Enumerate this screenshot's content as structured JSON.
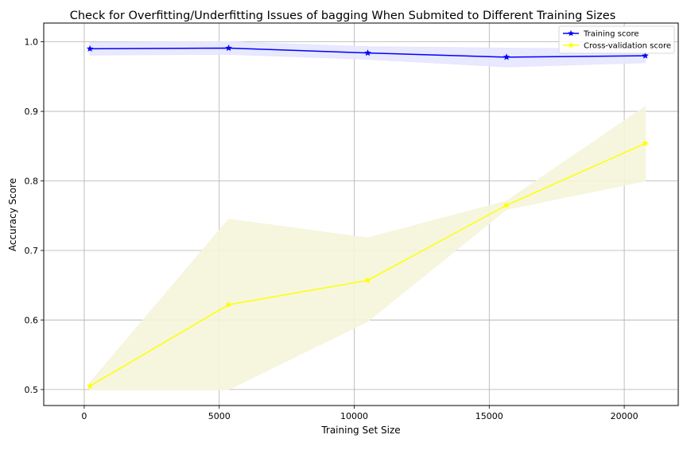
{
  "chart_data": {
    "type": "line",
    "title": "Check for Overfitting/Underfitting Issues of bagging When Submited to Different Training Sizes",
    "xlabel": "Training Set Size",
    "ylabel": "Accuracy Score",
    "xlim": [
      -1500,
      22000
    ],
    "ylim": [
      0.477,
      1.027
    ],
    "xticks": [
      0,
      5000,
      10000,
      15000,
      20000
    ],
    "yticks": [
      0.5,
      0.6,
      0.7,
      0.8,
      0.9,
      1.0
    ],
    "xtick_labels": [
      "0",
      "5000",
      "10000",
      "15000",
      "20000"
    ],
    "ytick_labels": [
      "0.5",
      "0.6",
      "0.7",
      "0.8",
      "0.9",
      "1.0"
    ],
    "grid": true,
    "legend_position": "upper right",
    "x": [
      210,
      5350,
      10500,
      15640,
      20780
    ],
    "series": [
      {
        "name": "Training score",
        "values": [
          0.99,
          0.991,
          0.984,
          0.978,
          0.98
        ],
        "band_upper": [
          0.999,
          1.0,
          0.993,
          0.991,
          0.989
        ],
        "band_lower": [
          0.981,
          0.982,
          0.975,
          0.964,
          0.97
        ],
        "color": "#0000ff",
        "band_color": "#e5e5ff",
        "marker": "star"
      },
      {
        "name": "Cross-validation score",
        "values": [
          0.505,
          0.622,
          0.657,
          0.765,
          0.854
        ],
        "band_upper": [
          0.51,
          0.745,
          0.718,
          0.771,
          0.907
        ],
        "band_lower": [
          0.5,
          0.5,
          0.598,
          0.759,
          0.8
        ],
        "color": "#ffff00",
        "band_color": "#f5f5dc",
        "marker": "star"
      }
    ]
  }
}
